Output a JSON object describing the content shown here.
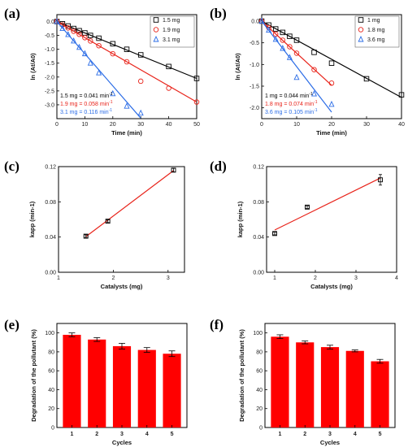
{
  "panel_labels": [
    "(a)",
    "(b)",
    "(c)",
    "(d)",
    "(e)",
    "(f)"
  ],
  "chart_data": [
    {
      "id": "a",
      "type": "scatter",
      "xlabel": "Time (min)",
      "ylabel": "ln (At/A0)",
      "xlim": [
        0,
        50
      ],
      "ylim": [
        -3.5,
        0.25
      ],
      "xticks": [
        0,
        10,
        20,
        30,
        40,
        50
      ],
      "yticks": [
        0.0,
        -0.5,
        -1.0,
        -1.5,
        -2.0,
        -2.5,
        -3.0
      ],
      "ytick_labels": [
        "0.0",
        "-0.5",
        "-1.0",
        "-1.5",
        "-2.0",
        "-2.5",
        "-3.0"
      ],
      "legend_position": "top-right",
      "series": [
        {
          "name": "1.5 mg",
          "color": "#000000",
          "marker": "square",
          "x": [
            0,
            2,
            4,
            6,
            8,
            10,
            12,
            15,
            20,
            25,
            30,
            40,
            50
          ],
          "y": [
            0,
            -0.08,
            -0.16,
            -0.25,
            -0.33,
            -0.41,
            -0.5,
            -0.6,
            -0.8,
            -1.0,
            -1.2,
            -1.62,
            -2.05
          ],
          "fit_slope": -0.041
        },
        {
          "name": "1.9 mg",
          "color": "#e8231a",
          "marker": "circle",
          "x": [
            0,
            2,
            4,
            6,
            8,
            10,
            12,
            15,
            20,
            25,
            30,
            40,
            50
          ],
          "y": [
            0,
            -0.12,
            -0.23,
            -0.35,
            -0.46,
            -0.58,
            -0.7,
            -0.87,
            -1.16,
            -1.45,
            -2.15,
            -2.4,
            -2.9
          ],
          "fit_slope": -0.058
        },
        {
          "name": "3.1 mg",
          "color": "#2b6ce6",
          "marker": "triangle",
          "x": [
            0,
            2,
            4,
            6,
            8,
            10,
            12,
            15,
            20,
            25,
            30
          ],
          "y": [
            0,
            -0.25,
            -0.47,
            -0.7,
            -0.93,
            -1.16,
            -1.5,
            -1.85,
            -2.6,
            -3.05,
            -3.3
          ],
          "fit_slope": -0.116
        }
      ],
      "annotations": [
        {
          "text": "1.5 mg = 0.041 min",
          "sup": "-1",
          "color": "#000000"
        },
        {
          "text": "1.9 mg = 0.058 min",
          "sup": "-1",
          "color": "#e8231a"
        },
        {
          "text": "3.1 mg = 0.116 min",
          "sup": "-1",
          "color": "#2b6ce6"
        }
      ]
    },
    {
      "id": "b",
      "type": "scatter",
      "xlabel": "Time (min)",
      "ylabel": "ln (At/A0)",
      "xlim": [
        0,
        40
      ],
      "ylim": [
        -2.25,
        0.15
      ],
      "xticks": [
        0,
        10,
        20,
        30,
        40
      ],
      "yticks": [
        0.0,
        -0.5,
        -1.0,
        -1.5,
        -2.0
      ],
      "ytick_labels": [
        "0.0",
        "-0.5",
        "-1.0",
        "-1.5",
        "-2.0"
      ],
      "legend_position": "top-right",
      "series": [
        {
          "name": "1 mg",
          "color": "#000000",
          "marker": "square",
          "x": [
            0,
            2,
            4,
            6,
            8,
            10,
            15,
            20,
            30,
            40
          ],
          "y": [
            0,
            -0.09,
            -0.18,
            -0.26,
            -0.35,
            -0.44,
            -0.72,
            -0.97,
            -1.33,
            -1.7
          ],
          "fit_slope": -0.044
        },
        {
          "name": "1.8 mg",
          "color": "#e8231a",
          "marker": "circle",
          "x": [
            0,
            2,
            4,
            6,
            8,
            10,
            15,
            20
          ],
          "y": [
            0,
            -0.15,
            -0.3,
            -0.44,
            -0.59,
            -0.74,
            -1.12,
            -1.43
          ],
          "fit_slope": -0.074
        },
        {
          "name": "3.6 mg",
          "color": "#2b6ce6",
          "marker": "triangle",
          "x": [
            0,
            2,
            4,
            6,
            8,
            10,
            15,
            20
          ],
          "y": [
            0,
            -0.21,
            -0.42,
            -0.63,
            -0.84,
            -1.3,
            -1.68,
            -1.92
          ],
          "fit_slope": -0.105
        }
      ],
      "annotations": [
        {
          "text": "1 mg = 0.044 min",
          "sup": "-1",
          "color": "#000000"
        },
        {
          "text": "1.8 mg = 0.074 min",
          "sup": "-1",
          "color": "#e8231a"
        },
        {
          "text": "3.6 mg = 0.105 min",
          "sup": "-1",
          "color": "#2b6ce6"
        }
      ]
    },
    {
      "id": "c",
      "type": "scatter",
      "xlabel": "Catalysts (mg)",
      "ylabel": "kapp (min-1)",
      "xlim": [
        1,
        3.3
      ],
      "ylim": [
        0,
        0.12
      ],
      "xticks": [
        1,
        2,
        3
      ],
      "yticks": [
        0.0,
        0.04,
        0.08,
        0.12
      ],
      "ytick_labels": [
        "0.00",
        "0.04",
        "0.08",
        "0.12"
      ],
      "x": [
        1.5,
        1.9,
        3.1
      ],
      "y": [
        0.041,
        0.058,
        0.116
      ],
      "error": [
        0.0015,
        0.0015,
        0.002
      ],
      "fit_line": {
        "x": [
          1.5,
          3.1
        ],
        "y": [
          0.0405,
          0.1155
        ]
      }
    },
    {
      "id": "d",
      "type": "scatter",
      "xlabel": "Catalysts (mg)",
      "ylabel": "kapp (min-1)",
      "xlim": [
        0.8,
        4
      ],
      "ylim": [
        0,
        0.12
      ],
      "xticks": [
        1,
        2,
        3,
        4
      ],
      "yticks": [
        0.0,
        0.04,
        0.08,
        0.12
      ],
      "ytick_labels": [
        "0.00",
        "0.04",
        "0.08",
        "0.12"
      ],
      "x": [
        1,
        1.8,
        3.6
      ],
      "y": [
        0.044,
        0.074,
        0.105
      ],
      "error": [
        0.0015,
        0.0015,
        0.006
      ],
      "fit_line": {
        "x": [
          1,
          3.6
        ],
        "y": [
          0.048,
          0.107
        ]
      }
    },
    {
      "id": "e",
      "type": "bar",
      "xlabel": "Cycles",
      "ylabel": "Degradation of the pollutant (%)",
      "categories": [
        "1",
        "2",
        "3",
        "4",
        "5"
      ],
      "values": [
        98,
        93,
        86,
        82,
        78
      ],
      "error": [
        2,
        2,
        3,
        2.5,
        3
      ],
      "ylim": [
        0,
        110
      ],
      "yticks": [
        0,
        20,
        40,
        60,
        80,
        100
      ],
      "color": "#ff0000"
    },
    {
      "id": "f",
      "type": "bar",
      "xlabel": "Cycles",
      "ylabel": "Degradation of the pollutant (%)",
      "categories": [
        "1",
        "2",
        "3",
        "4",
        "5"
      ],
      "values": [
        96,
        90,
        85,
        81,
        70
      ],
      "error": [
        2,
        1.5,
        2,
        1,
        2
      ],
      "ylim": [
        0,
        110
      ],
      "yticks": [
        0,
        20,
        40,
        60,
        80,
        100
      ],
      "color": "#ff0000"
    }
  ]
}
